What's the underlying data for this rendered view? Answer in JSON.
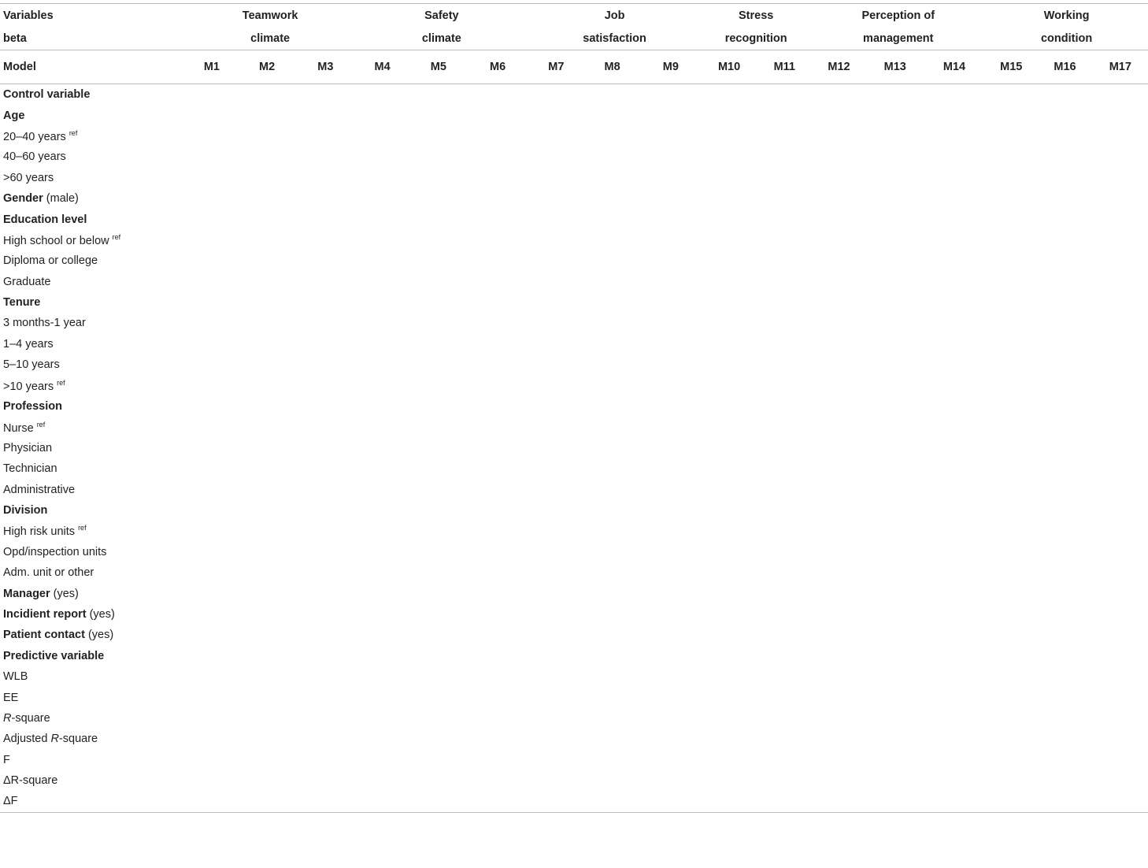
{
  "header": {
    "var_label": [
      "Variables",
      "beta"
    ],
    "groups": [
      {
        "lines": [
          "Teamwork",
          "climate"
        ],
        "span": 3
      },
      {
        "lines": [
          "Safety",
          "climate"
        ],
        "span": 3
      },
      {
        "lines": [
          "Job",
          "satisfaction"
        ],
        "span": 3
      },
      {
        "lines": [
          "Stress",
          "recognition"
        ],
        "span": 2
      },
      {
        "lines": [
          "Perception of",
          "management"
        ],
        "span": 3
      },
      {
        "lines": [
          "Working",
          "condition"
        ],
        "span": 3
      }
    ],
    "model_label": "Model",
    "models": [
      "M1",
      "M2",
      "M3",
      "M4",
      "M5",
      "M6",
      "M7",
      "M8",
      "M9",
      "M10",
      "M11",
      "M12",
      "M13",
      "M14",
      "M15",
      "M16",
      "M17"
    ]
  },
  "rows": [
    {
      "label": "Control variable",
      "section": true,
      "values": []
    },
    {
      "label": "Age",
      "section": true,
      "values": []
    },
    {
      "label": "20–40 years",
      "sup": "ref",
      "values": [
        "",
        "",
        "",
        "",
        "",
        "",
        "",
        "",
        "",
        "",
        "",
        "",
        "",
        "",
        "",
        "",
        ""
      ]
    },
    {
      "label": "40–60 years",
      "values": [
        "",
        "",
        "",
        "",
        "",
        "",
        "",
        "",
        "",
        "",
        "",
        "",
        "",
        "",
        "",
        "",
        ""
      ]
    },
    {
      "label": ">60 years",
      "values": [
        "",
        "",
        "",
        "",
        "",
        "",
        "",
        "",
        "",
        "",
        "",
        "",
        "",
        "",
        "",
        "",
        ""
      ]
    },
    {
      "label": "Gender",
      "bold_label": true,
      "suffix": " (male)",
      "values": [
        "",
        "",
        "",
        "",
        "",
        "",
        "",
        "",
        "",
        "",
        "",
        "",
        "",
        "",
        "",
        "",
        ""
      ]
    },
    {
      "label": "Education level",
      "section": true,
      "values": []
    },
    {
      "label": "High school or below",
      "sup": "ref",
      "values": [
        "",
        "",
        "",
        "",
        "",
        "",
        "",
        "",
        "",
        "",
        "",
        "",
        "",
        "",
        "",
        "",
        ""
      ]
    },
    {
      "label": "Diploma or college",
      "values": [
        "",
        "",
        "",
        "",
        "",
        "",
        "",
        "",
        "",
        "",
        "",
        "",
        "",
        "",
        "",
        "",
        ""
      ]
    },
    {
      "label": "Graduate",
      "values": [
        "",
        "",
        "",
        "",
        "",
        "",
        "",
        "",
        "",
        "",
        "",
        "",
        "",
        "",
        "",
        "",
        ""
      ]
    },
    {
      "label": "Tenure",
      "section": true,
      "values": []
    },
    {
      "label": "3 months-1 year",
      "values": [
        "",
        "",
        "",
        "",
        "",
        "",
        "",
        "",
        "",
        "",
        "",
        "",
        "",
        "",
        "",
        "",
        ""
      ]
    },
    {
      "label": "1–4 years",
      "values": [
        "",
        "",
        "",
        "",
        "",
        "",
        "",
        "",
        "",
        "",
        "",
        "",
        "",
        "",
        "",
        "",
        ""
      ]
    },
    {
      "label": "5–10 years",
      "values": [
        "",
        "",
        "",
        "",
        "",
        "",
        "",
        "",
        "",
        "",
        "",
        "",
        "",
        "",
        "",
        "",
        ""
      ]
    },
    {
      "label": ">10 years",
      "sup": "ref",
      "values": [
        "",
        "",
        "",
        "",
        "",
        "",
        "",
        "",
        "",
        "",
        "",
        "",
        "",
        "",
        "",
        "",
        ""
      ]
    },
    {
      "label": "Profession",
      "section": true,
      "values": []
    },
    {
      "label": "Nurse",
      "sup": "ref",
      "values": [
        "",
        "",
        "",
        "",
        "",
        "",
        "",
        "",
        "",
        "",
        "",
        "",
        "",
        "",
        "",
        "",
        ""
      ]
    },
    {
      "label": "Physician",
      "values": [
        "",
        "",
        "",
        "",
        "",
        "",
        "",
        "",
        "",
        "",
        "",
        "",
        "",
        "",
        "",
        "",
        ""
      ]
    },
    {
      "label": "Technician",
      "values": [
        "",
        "",
        "",
        "",
        "",
        "",
        "",
        "",
        "",
        "",
        "",
        "",
        "",
        "",
        "",
        "",
        ""
      ]
    },
    {
      "label": "Administrative",
      "values": [
        "",
        "",
        "",
        "",
        "",
        "",
        "",
        "",
        "",
        "",
        "",
        "",
        "",
        "",
        "",
        "",
        ""
      ]
    },
    {
      "label": "Division",
      "section": true,
      "values": []
    },
    {
      "label": "High risk units",
      "sup": "ref",
      "values": [
        "",
        "",
        "",
        "",
        "",
        "",
        "",
        "",
        "",
        "",
        "",
        "",
        "",
        "",
        "",
        "",
        ""
      ]
    },
    {
      "label": "Opd/inspection units",
      "values": [
        "",
        "",
        "",
        "",
        "",
        "",
        "",
        "",
        "",
        "",
        "",
        "",
        "",
        "",
        "",
        "",
        ""
      ]
    },
    {
      "label": "Adm. unit or other",
      "values": [
        "",
        "",
        "",
        "",
        "",
        "",
        "",
        "",
        "",
        "",
        "",
        "",
        "",
        "",
        "",
        "",
        ""
      ]
    },
    {
      "label": "Manager",
      "bold_label": true,
      "suffix": " (yes)",
      "values": [
        "",
        "",
        "",
        "",
        "",
        "",
        "",
        "",
        "",
        "",
        "",
        "",
        "",
        "",
        "",
        "",
        ""
      ]
    },
    {
      "label": "Incidient report",
      "bold_label": true,
      "suffix": " (yes)",
      "values": [
        "",
        "",
        "",
        "",
        "",
        "",
        "",
        "",
        "",
        "",
        "",
        "",
        "",
        "",
        "",
        "",
        ""
      ]
    },
    {
      "label": "Patient contact",
      "bold_label": true,
      "suffix": " (yes)",
      "values": [
        "",
        "",
        "",
        "",
        "",
        "",
        "",
        "",
        "",
        "",
        "",
        "",
        "",
        "",
        "",
        "",
        ""
      ]
    },
    {
      "label": "Predictive variable",
      "section": true,
      "values": []
    },
    {
      "label": "WLB",
      "values": [
        "",
        "",
        "",
        "",
        "",
        "",
        "",
        "",
        "",
        "",
        "",
        "",
        "",
        "",
        "",
        "",
        ""
      ]
    },
    {
      "label": "EE",
      "values": [
        "",
        "",
        "",
        "",
        "",
        "",
        "",
        "",
        "",
        "",
        "",
        "",
        "",
        "",
        "",
        "",
        ""
      ]
    },
    {
      "label": "R",
      "italic_prefix": true,
      "suffix": "-square",
      "values": [
        "",
        "",
        "",
        "",
        "",
        "",
        "",
        "",
        "",
        "",
        "",
        "",
        "",
        "",
        "",
        "",
        ""
      ]
    },
    {
      "label": "Adjusted ",
      "italic_mid": "R",
      "suffix": "-square",
      "values": [
        "",
        "",
        "",
        "",
        "",
        "",
        "",
        "",
        "",
        "",
        "",
        "",
        "",
        "",
        "",
        "",
        ""
      ]
    },
    {
      "label": "F",
      "values": [
        "",
        "",
        "",
        "",
        "",
        "",
        "",
        "",
        "",
        "",
        "",
        "",
        "",
        "",
        "",
        "",
        ""
      ]
    },
    {
      "label": "ΔR-square",
      "values": [
        "",
        "",
        "",
        "",
        "",
        "",
        "",
        "",
        "",
        "",
        "",
        "",
        "",
        "",
        "",
        "",
        ""
      ]
    },
    {
      "label": "ΔF",
      "values": [
        "",
        "",
        "",
        "",
        "",
        "",
        "",
        "",
        "",
        "",
        "",
        "",
        "",
        "",
        "",
        "",
        ""
      ]
    }
  ],
  "footnotes": [
    "",
    ""
  ]
}
